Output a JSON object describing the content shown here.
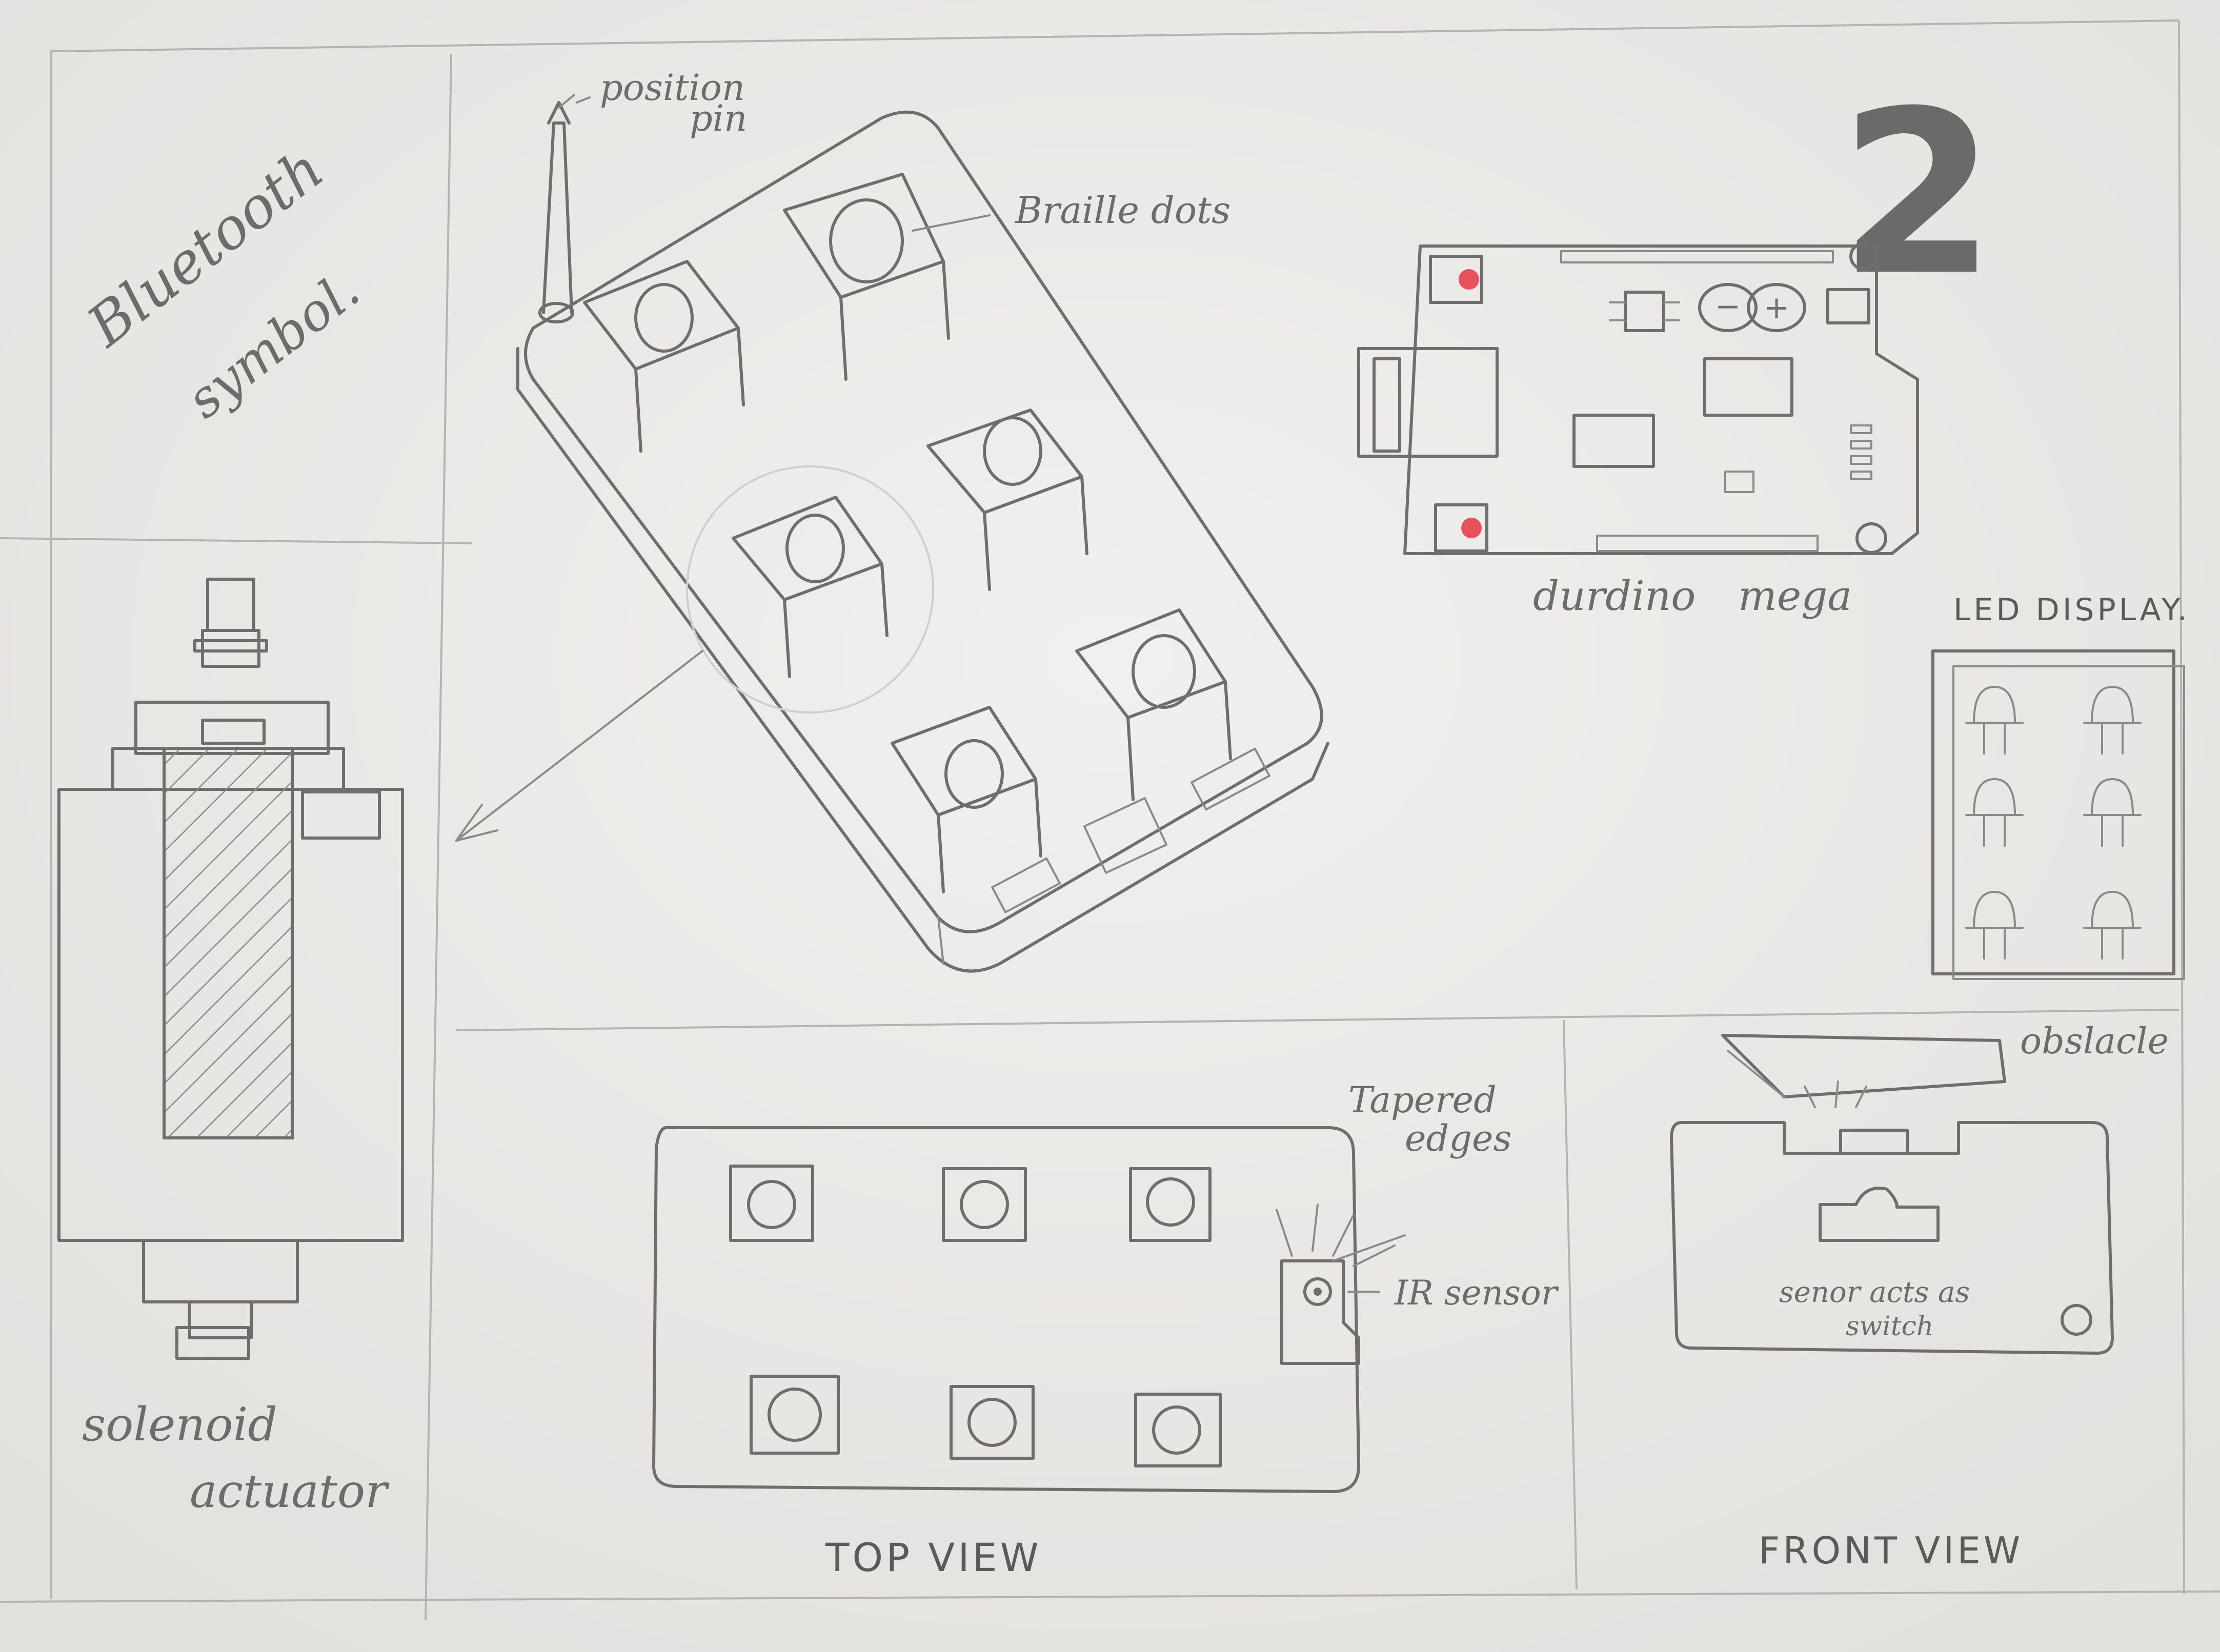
{
  "sheet": {
    "page_number": "2",
    "colors": {
      "paper": "#ececea",
      "pencil": "#6e6e6e",
      "red_dot": "#e8505b",
      "dark_graphite": "#555555"
    }
  },
  "panels": {
    "bluetooth": {
      "line1": "Bluetooth",
      "line2": "symbol."
    },
    "solenoid": {
      "line1": "solenoid",
      "line2": "actuator"
    },
    "device": {
      "position_pin_line1": "position",
      "position_pin_line2": "pin",
      "braille_dots": "Braille dots"
    },
    "arduino": {
      "label_word1": "durdino",
      "label_word2": "mega"
    },
    "led_display": {
      "title": "LED DISPLAY."
    },
    "top_view": {
      "tapered_line1": "Tapered",
      "tapered_line2": "edges",
      "ir_sensor": "IR sensor",
      "title": "TOP VIEW"
    },
    "front_view": {
      "obstacle": "obslacle",
      "sensor_line1": "senor acts as",
      "sensor_line2": "switch",
      "title": "FRONT VIEW"
    }
  }
}
